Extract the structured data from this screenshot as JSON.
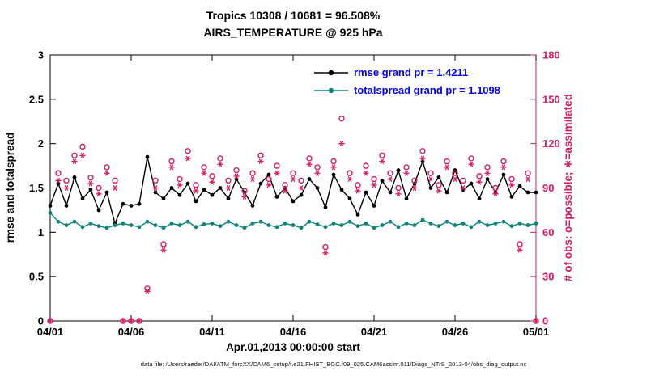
{
  "title": {
    "line1": "Tropics 10308 / 10681 = 96.508%",
    "line2": "AIRS_TEMPERATURE @ 925 hPa"
  },
  "legend": [
    {
      "label": "rmse grand pr = 1.4211"
    },
    {
      "label": "totalspread grand pr = 1.1098"
    }
  ],
  "colors": {
    "black": "#000000",
    "teal": "#0e837c",
    "obs": "#d81b60",
    "legend_text": "#0000ff"
  },
  "axes": {
    "left": {
      "label": "rmse and totalspread",
      "range": [
        0,
        3
      ],
      "tick_values": [
        0,
        0.5,
        1,
        1.5,
        2,
        2.5,
        3
      ],
      "tick_labels": [
        "0",
        "0.5",
        "1",
        "1.5",
        "2",
        "2.5",
        "3"
      ]
    },
    "right": {
      "label": "# of obs: o=possible; ∗=assimilated",
      "range": [
        0,
        180
      ],
      "tick_values": [
        0,
        30,
        60,
        90,
        120,
        150,
        180
      ],
      "tick_labels": [
        "0",
        "30",
        "60",
        "90",
        "120",
        "150",
        "180"
      ],
      "color": "#d81b60"
    },
    "x": {
      "label": "Apr.01,2013 00:00:00 start",
      "range": [
        0,
        30
      ],
      "tick_values": [
        0,
        5,
        10,
        15,
        20,
        25,
        30
      ],
      "tick_labels": [
        "04/01",
        "04/06",
        "04/11",
        "04/16",
        "04/21",
        "04/26",
        "05/01"
      ]
    }
  },
  "caption": "data file: /Users/raeder/DAI/ATM_forcXX/CAM6_setup/f.e21.FHIST_BGC.f09_025.CAM6assim.011/Diags_NTrS_2013-04/obs_diag_output.nc",
  "chart_data": {
    "type": "line",
    "x_unit": "days since Apr.01,2013 00:00:00",
    "x": [
      0,
      0.5,
      1,
      1.5,
      2,
      2.5,
      3,
      3.5,
      4,
      4.5,
      5,
      5.5,
      6,
      6.5,
      7,
      7.5,
      8,
      8.5,
      9,
      9.5,
      10,
      10.5,
      11,
      11.5,
      12,
      12.5,
      13,
      13.5,
      14,
      14.5,
      15,
      15.5,
      16,
      16.5,
      17,
      17.5,
      18,
      18.5,
      19,
      19.5,
      20,
      20.5,
      21,
      21.5,
      22,
      22.5,
      23,
      23.5,
      24,
      24.5,
      25,
      25.5,
      26,
      26.5,
      27,
      27.5,
      28,
      28.5,
      29,
      29.5,
      30
    ],
    "series": [
      {
        "name": "rmse",
        "axis": "left",
        "type": "line",
        "marker": "dot",
        "color": "#000000",
        "values": [
          1.3,
          1.55,
          1.3,
          1.62,
          1.38,
          1.48,
          1.25,
          1.45,
          1.1,
          1.32,
          1.3,
          1.32,
          1.85,
          1.45,
          1.38,
          1.5,
          1.42,
          1.55,
          1.35,
          1.48,
          1.42,
          1.5,
          1.38,
          1.6,
          1.45,
          1.3,
          1.55,
          1.65,
          1.4,
          1.5,
          1.35,
          1.42,
          1.6,
          1.5,
          1.28,
          1.65,
          1.48,
          1.38,
          1.2,
          1.45,
          1.3,
          1.58,
          1.45,
          1.7,
          1.38,
          1.55,
          1.8,
          1.5,
          1.62,
          1.45,
          1.7,
          1.48,
          1.55,
          1.38,
          1.6,
          1.45,
          1.65,
          1.4,
          1.52,
          1.45,
          1.45
        ]
      },
      {
        "name": "totalspread",
        "axis": "left",
        "type": "line",
        "marker": "dot",
        "color": "#0e837c",
        "values": [
          1.22,
          1.12,
          1.08,
          1.12,
          1.06,
          1.1,
          1.07,
          1.05,
          1.08,
          1.1,
          1.08,
          1.06,
          1.12,
          1.08,
          1.05,
          1.1,
          1.08,
          1.12,
          1.06,
          1.09,
          1.1,
          1.07,
          1.12,
          1.08,
          1.05,
          1.1,
          1.12,
          1.08,
          1.06,
          1.1,
          1.08,
          1.05,
          1.12,
          1.09,
          1.06,
          1.1,
          1.08,
          1.12,
          1.07,
          1.1,
          1.05,
          1.08,
          1.12,
          1.06,
          1.1,
          1.08,
          1.14,
          1.1,
          1.07,
          1.12,
          1.08,
          1.1,
          1.06,
          1.12,
          1.08,
          1.1,
          1.12,
          1.07,
          1.1,
          1.08,
          1.1
        ]
      },
      {
        "name": "possible",
        "axis": "right",
        "type": "scatter",
        "marker": "circle",
        "color": "#d81b60",
        "values": [
          0,
          100,
          95,
          112,
          118,
          97,
          90,
          104,
          95,
          0,
          0,
          0,
          22,
          95,
          52,
          108,
          96,
          115,
          92,
          104,
          98,
          110,
          95,
          102,
          88,
          100,
          112,
          96,
          105,
          92,
          100,
          95,
          110,
          104,
          50,
          108,
          137,
          100,
          92,
          105,
          96,
          112,
          100,
          90,
          104,
          95,
          115,
          100,
          92,
          108,
          100,
          95,
          110,
          98,
          104,
          90,
          108,
          96,
          52,
          100,
          0
        ]
      },
      {
        "name": "assimilated",
        "axis": "right",
        "type": "scatter",
        "marker": "asterisk",
        "color": "#d81b60",
        "values": [
          0,
          95,
          90,
          108,
          112,
          93,
          86,
          100,
          90,
          0,
          0,
          0,
          20,
          90,
          48,
          104,
          92,
          110,
          88,
          100,
          94,
          106,
          90,
          98,
          84,
          96,
          108,
          92,
          100,
          88,
          96,
          90,
          106,
          100,
          46,
          104,
          120,
          96,
          88,
          100,
          92,
          108,
          96,
          86,
          100,
          90,
          110,
          96,
          88,
          104,
          96,
          90,
          106,
          94,
          100,
          86,
          104,
          92,
          48,
          96,
          0
        ]
      }
    ]
  }
}
